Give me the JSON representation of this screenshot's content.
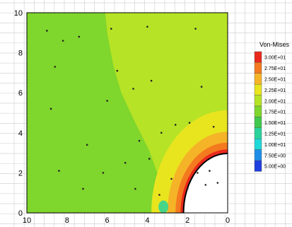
{
  "chart_data": {
    "type": "heatmap",
    "title": "",
    "xlabel": "",
    "ylabel": "",
    "xlim": [
      10,
      0
    ],
    "ylim": [
      0,
      10
    ],
    "x_ticks": [
      "10",
      "8",
      "6",
      "4",
      "2",
      "0"
    ],
    "y_ticks": [
      "0",
      "2",
      "4",
      "6",
      "8",
      "10"
    ],
    "grid": true,
    "legend": {
      "title": "Von-Mises",
      "placement": "right",
      "levels": [
        {
          "label": "3.00E+01",
          "color": "#e8291c"
        },
        {
          "label": "2.75E+01",
          "color": "#f47a1f"
        },
        {
          "label": "2.50E+01",
          "color": "#f5b428"
        },
        {
          "label": "2.25E+01",
          "color": "#e8e51f"
        },
        {
          "label": "2.00E+01",
          "color": "#b6e326"
        },
        {
          "label": "1.75E+01",
          "color": "#7fd62c"
        },
        {
          "label": "1.50E+01",
          "color": "#41c94d"
        },
        {
          "label": "1.25E+01",
          "color": "#2ad39b"
        },
        {
          "label": "1.00E+01",
          "color": "#20d9d9"
        },
        {
          "label": "7.50E+00",
          "color": "#1e8ee8"
        },
        {
          "label": "5.00E+00",
          "color": "#1f3fe0"
        }
      ]
    },
    "field": {
      "domain": "square plate 0..10 x 0..10 with quarter-circle hole of radius 2.2 centred at (0,0)",
      "zones": [
        {
          "level": "2.00E+01",
          "region": "right half of plate (x 5.5..10)"
        },
        {
          "level": "1.75E+01",
          "region": "upper-left and lower-left band"
        },
        {
          "level": "2.25E+01",
          "region": "ring around hole, r 2.2..3.8"
        },
        {
          "level": "2.50E+01",
          "region": "ring around hole, r 2.2..3.0"
        },
        {
          "level": "2.75E+01",
          "region": "ring around hole, r 2.2..2.6"
        },
        {
          "level": "3.00E+01",
          "region": "ring around hole, r 2.2..2.35"
        },
        {
          "level": "1.25E+01",
          "region": "small spot near (3.2, 0.3)"
        }
      ]
    },
    "nodes": [
      [
        9.0,
        9.1
      ],
      [
        8.2,
        8.6
      ],
      [
        7.4,
        8.8
      ],
      [
        5.8,
        9.2
      ],
      [
        4.0,
        9.3
      ],
      [
        1.6,
        9.2
      ],
      [
        8.6,
        7.3
      ],
      [
        5.5,
        7.1
      ],
      [
        3.8,
        6.6
      ],
      [
        1.3,
        6.3
      ],
      [
        8.8,
        5.2
      ],
      [
        6.0,
        5.6
      ],
      [
        4.7,
        6.2
      ],
      [
        2.6,
        4.4
      ],
      [
        1.9,
        4.5
      ],
      [
        0.7,
        4.3
      ],
      [
        7.0,
        3.4
      ],
      [
        4.4,
        3.6
      ],
      [
        3.3,
        4.0
      ],
      [
        8.4,
        2.1
      ],
      [
        6.2,
        2.0
      ],
      [
        5.1,
        2.5
      ],
      [
        3.9,
        2.7
      ],
      [
        2.8,
        1.7
      ],
      [
        1.5,
        2.0
      ],
      [
        0.9,
        2.1
      ],
      [
        7.2,
        1.2
      ],
      [
        4.6,
        1.2
      ],
      [
        3.4,
        0.9
      ],
      [
        2.0,
        1.2
      ],
      [
        1.1,
        1.4
      ],
      [
        0.5,
        1.5
      ]
    ]
  }
}
